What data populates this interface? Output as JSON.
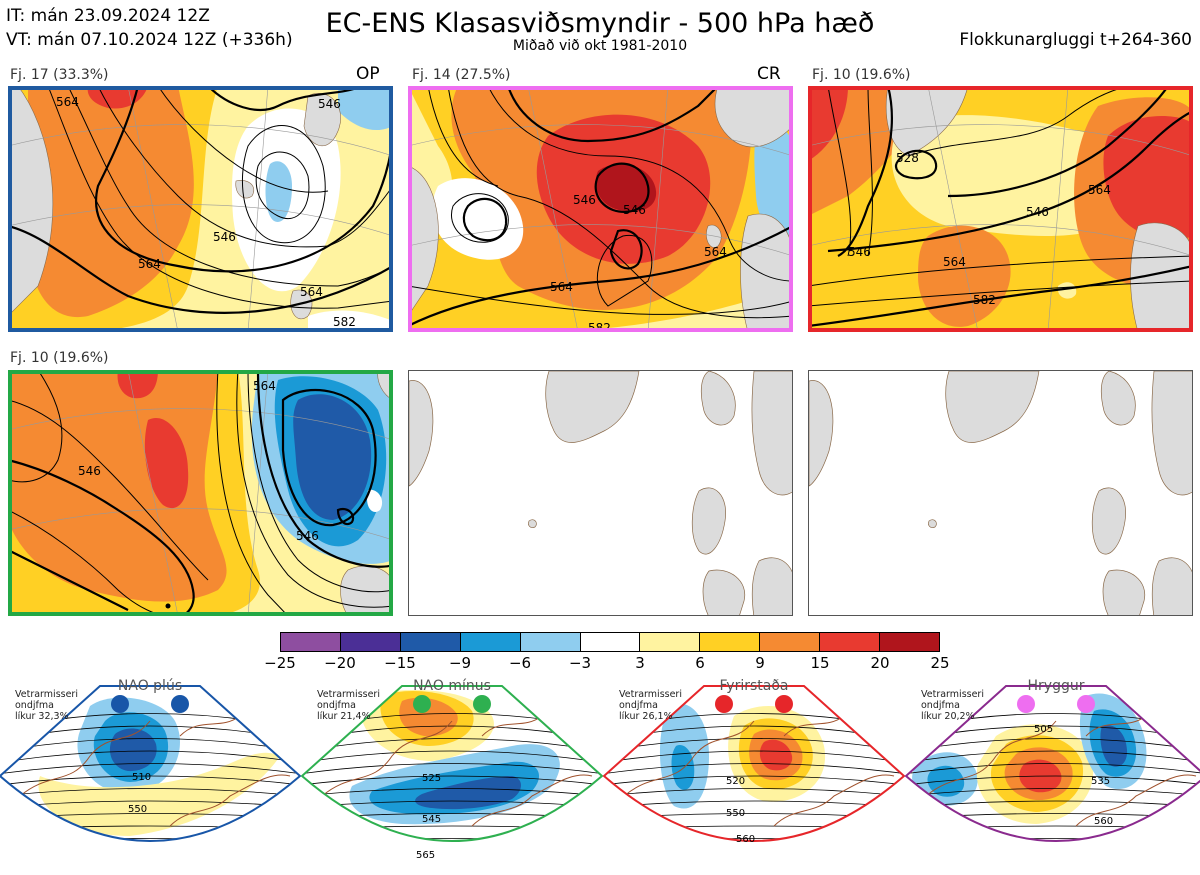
{
  "header": {
    "init_time": "IT: mán 23.09.2024 12Z",
    "valid_time": "VT: mán 07.10.2024 12Z  (+336h)",
    "title": "EC-ENS Klasasviðsmyndir - 500 hPa hæð",
    "subtitle": "Miðað við okt 1981-2010",
    "cluster_window": "Flokkunargluggi t+264-360"
  },
  "clusters": [
    {
      "label": "Fj. 17 (33.3%)",
      "tag": "OP",
      "frame_color": "#1f5aa0",
      "contour_labels": [
        "564",
        "546",
        "546",
        "564",
        "564",
        "582"
      ]
    },
    {
      "label": "Fj. 14 (27.5%)",
      "tag": "CR",
      "frame_color": "#ee6ef0",
      "contour_labels": [
        "546",
        "546",
        "564",
        "564",
        "582"
      ]
    },
    {
      "label": "Fj. 10 (19.6%)",
      "tag": "",
      "frame_color": "#e6262a",
      "contour_labels": [
        "528",
        "546",
        "564",
        "546",
        "564",
        "582"
      ]
    },
    {
      "label": "Fj. 10 (19.6%)",
      "tag": "",
      "frame_color": "#23a845",
      "contour_labels": [
        "546",
        "546",
        "564"
      ]
    }
  ],
  "colorbar": {
    "colors": [
      "#8e4ea0",
      "#4b2f96",
      "#1f5aa8",
      "#1b9ad6",
      "#8fcdef",
      "#ffffff",
      "#fff3a0",
      "#ffd024",
      "#f58a32",
      "#e83a30",
      "#b0151c"
    ],
    "ticks": [
      "−25",
      "−20",
      "−15",
      "−9",
      "−6",
      "−3",
      "3",
      "6",
      "9",
      "15",
      "20",
      "25"
    ]
  },
  "regimes": [
    {
      "name": "NAO plús",
      "dot_color": "#1856a8",
      "frame_color": "#1856a8",
      "note": "Vetrarmisseri\nondjfma\nlíkur 32,3%",
      "contour_labels": [
        "510",
        "550"
      ]
    },
    {
      "name": "NAO mínus",
      "dot_color": "#2eb050",
      "frame_color": "#2eb050",
      "note": "Vetrarmisseri\nondjfma\nlíkur 21,4%",
      "contour_labels": [
        "525",
        "545",
        "565"
      ]
    },
    {
      "name": "Fyrirstaða",
      "dot_color": "#e6262a",
      "frame_color": "#e6262a",
      "note": "Vetrarmisseri\nondjfma\nlíkur 26,1%",
      "contour_labels": [
        "520",
        "550",
        "560"
      ]
    },
    {
      "name": "Hryggur",
      "dot_color": "#ee6ef0",
      "frame_color": "#8a2a8e",
      "note": "Vetrarmisseri\nondjfma\nlíkur 20,2%",
      "contour_labels": [
        "505",
        "535",
        "560"
      ]
    }
  ]
}
